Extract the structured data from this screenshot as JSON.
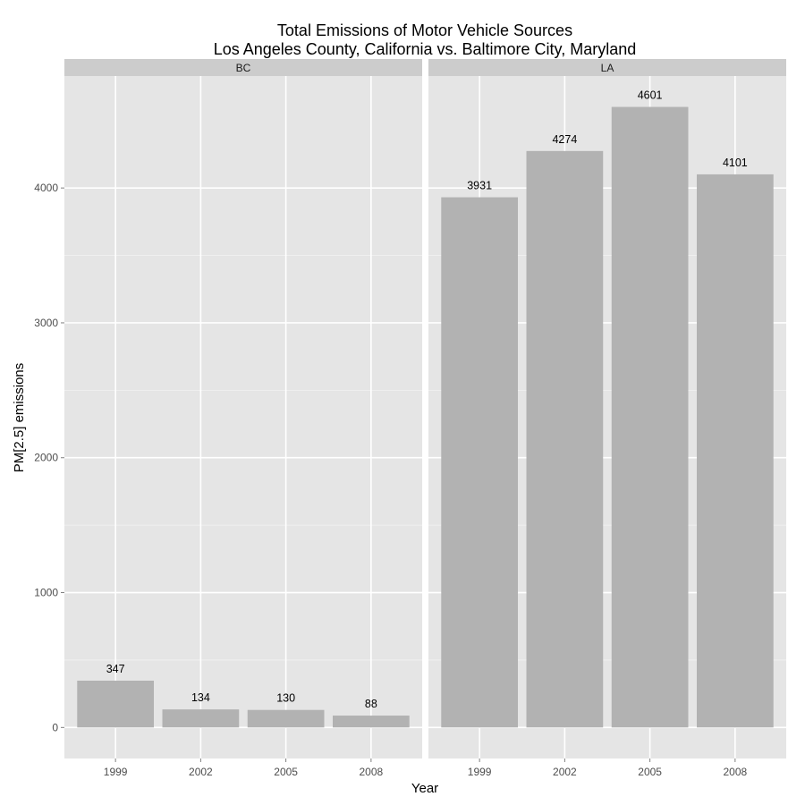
{
  "chart_data": {
    "type": "bar",
    "title": "Total Emissions of Motor Vehicle Sources",
    "subtitle": "Los Angeles County, California vs. Baltimore City, Maryland",
    "xlabel": "Year",
    "ylabel": "PM[2.5] emissions",
    "categories": [
      "1999",
      "2002",
      "2005",
      "2008"
    ],
    "ylim": [
      -230,
      4830
    ],
    "yticks": [
      0,
      1000,
      2000,
      3000,
      4000
    ],
    "grid": true,
    "facets": [
      {
        "name": "BC",
        "values": [
          347,
          134,
          130,
          88
        ],
        "labels": [
          "347",
          "134",
          "130",
          "88"
        ]
      },
      {
        "name": "LA",
        "values": [
          3931,
          4274,
          4601,
          4101
        ],
        "labels": [
          "3931",
          "4274",
          "4601",
          "4101"
        ]
      }
    ],
    "colors": {
      "panel_background": "#e5e5e5",
      "strip_background": "#cccccc",
      "bar_fill": "#b2b2b2",
      "grid_major": "#ffffff",
      "grid_minor": "#f2f2f2"
    }
  }
}
